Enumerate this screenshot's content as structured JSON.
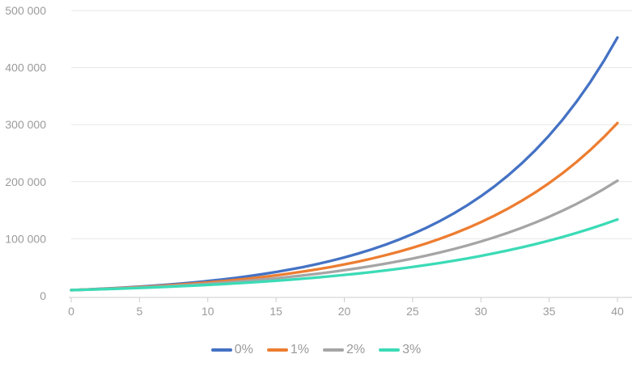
{
  "chart_data": {
    "type": "line",
    "title": "",
    "xlabel": "",
    "ylabel": "",
    "xlim": [
      0,
      40
    ],
    "ylim": [
      0,
      500000
    ],
    "grid": "horizontal",
    "legend_position": "bottom",
    "x_ticks": [
      0,
      5,
      10,
      15,
      20,
      25,
      30,
      35,
      40
    ],
    "y_ticks": [
      {
        "value": 0,
        "label": "0"
      },
      {
        "value": 100000,
        "label": "100 000"
      },
      {
        "value": 200000,
        "label": "200 000"
      },
      {
        "value": 300000,
        "label": "300 000"
      },
      {
        "value": 400000,
        "label": "400 000"
      },
      {
        "value": 500000,
        "label": "500 000"
      }
    ],
    "x": [
      0,
      1,
      2,
      3,
      4,
      5,
      6,
      7,
      8,
      9,
      10,
      11,
      12,
      13,
      14,
      15,
      16,
      17,
      18,
      19,
      20,
      21,
      22,
      23,
      24,
      25,
      26,
      27,
      28,
      29,
      30,
      31,
      32,
      33,
      34,
      35,
      36,
      37,
      38,
      39,
      40
    ],
    "series": [
      {
        "name": "0%",
        "color": "#4472C4",
        "values": [
          10000,
          11000,
          12100,
          13310,
          14641,
          16105,
          17716,
          19487,
          21436,
          23579,
          25937,
          28531,
          31384,
          34523,
          37975,
          41772,
          45950,
          50545,
          55599,
          61159,
          67275,
          74002,
          81403,
          89543,
          98497,
          108347,
          119182,
          131100,
          144210,
          158631,
          174494,
          191943,
          211138,
          232252,
          255477,
          281024,
          309127,
          340039,
          374043,
          411448,
          452593
        ]
      },
      {
        "name": "1%",
        "color": "#ED7D31",
        "values": [
          10000,
          10890,
          11858,
          12914,
          14063,
          15314,
          16677,
          18162,
          19778,
          21538,
          23455,
          25543,
          27816,
          30292,
          32988,
          35924,
          39121,
          42603,
          46394,
          50523,
          55020,
          59917,
          65249,
          71057,
          77381,
          84267,
          91767,
          99934,
          108829,
          118514,
          129062,
          140549,
          153058,
          166680,
          181514,
          197669,
          215261,
          234420,
          255283,
          278003,
          302746
        ]
      },
      {
        "name": "2%",
        "color": "#A5A5A5",
        "values": [
          10000,
          10780,
          11621,
          12527,
          13504,
          14558,
          15693,
          16917,
          18237,
          19659,
          21193,
          22846,
          24628,
          26549,
          28620,
          30852,
          33258,
          35852,
          38649,
          41664,
          44913,
          48417,
          52193,
          56264,
          60653,
          65384,
          70484,
          75981,
          81908,
          88297,
          95184,
          102608,
          110612,
          119239,
          128540,
          138566,
          149374,
          161025,
          173585,
          187125,
          201721
        ]
      },
      {
        "name": "3%",
        "color": "#3BDBB6",
        "values": [
          10000,
          10670,
          11385,
          12148,
          12962,
          13830,
          14757,
          15745,
          16800,
          17926,
          19127,
          20408,
          21776,
          23235,
          24791,
          26452,
          28225,
          30116,
          32134,
          34287,
          36584,
          39035,
          41650,
          44441,
          47418,
          50595,
          53985,
          57602,
          61462,
          65579,
          69973,
          74662,
          79664,
          85001,
          90696,
          96773,
          103257,
          110175,
          117557,
          125433,
          133837
        ]
      }
    ],
    "colors": {
      "grid": "#e7e7e7",
      "axis": "#cdcdcd",
      "tick_text": "#9b9b9b",
      "legend_text": "#9a9a9a"
    }
  }
}
